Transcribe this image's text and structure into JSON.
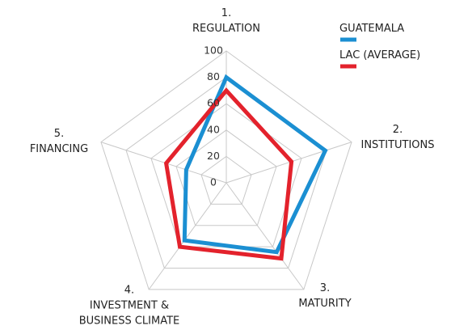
{
  "chart_data": {
    "type": "radar",
    "categories": [
      "1.\nREGULATION",
      "2.\nINSTITUTIONS",
      "3.\nMATURITY",
      "4.\nINVESTMENT &\nBUSINESS CLIMATE",
      "5.\nFINANCING"
    ],
    "series": [
      {
        "name": "GUATEMALA",
        "color": "#1b8fd2",
        "values": [
          80,
          79,
          65,
          54,
          32
        ]
      },
      {
        "name": "LAC (AVERAGE)",
        "color": "#e3222c",
        "values": [
          70,
          52,
          71,
          60,
          48
        ]
      }
    ],
    "ylim": [
      0,
      100
    ],
    "yticks": [
      0,
      20,
      40,
      60,
      80,
      100
    ],
    "grid": true
  }
}
